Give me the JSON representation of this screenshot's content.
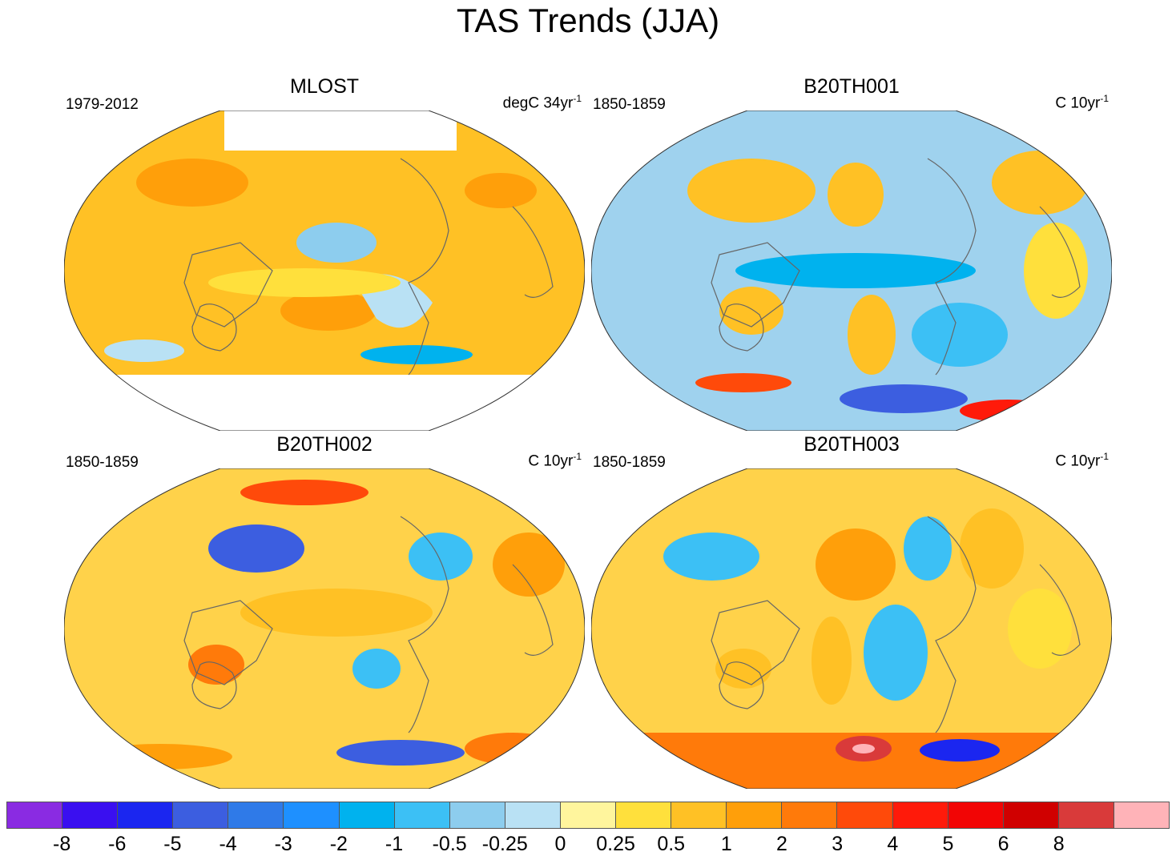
{
  "title": "TAS Trends (JJA)",
  "panels": [
    {
      "title": "MLOST",
      "period": "1979-2012",
      "units_base": "degC 34yr",
      "units_sup": "-1",
      "base_color": "#ffc125"
    },
    {
      "title": "B20TH001",
      "period": "1850-1859",
      "units_base": "C 10yr",
      "units_sup": "-1",
      "base_color": "#9fd2ee"
    },
    {
      "title": "B20TH002",
      "period": "1850-1859",
      "units_base": "C 10yr",
      "units_sup": "-1",
      "base_color": "#ffd24a"
    },
    {
      "title": "B20TH003",
      "period": "1850-1859",
      "units_base": "C 10yr",
      "units_sup": "-1",
      "base_color": "#ffd24a"
    }
  ],
  "colorbar": {
    "colors": [
      "#8a2be2",
      "#3a0ff0",
      "#1b26f0",
      "#3c5ee0",
      "#2f7ae8",
      "#1e90ff",
      "#00b2ee",
      "#3cc0f5",
      "#8dcdee",
      "#b9e1f4",
      "#fff59d",
      "#ffe03c",
      "#ffc125",
      "#ff9f0a",
      "#ff7a0a",
      "#ff4a0a",
      "#ff1a0a",
      "#f20505",
      "#d00000",
      "#d93a3a",
      "#ffb3b8"
    ],
    "labels": [
      "-8",
      "-6",
      "-5",
      "-4",
      "-3",
      "-2",
      "-1",
      "-0.5",
      "-0.25",
      "0",
      "0.25",
      "0.5",
      "1",
      "2",
      "3",
      "4",
      "5",
      "6",
      "8"
    ]
  },
  "chart_data": {
    "type": "heatmap",
    "title": "TAS Trends (JJA)",
    "projection": "Winkel tripel",
    "variable": "TAS (surface air temperature) trend",
    "season": "JJA",
    "contour_levels": [
      -8,
      -6,
      -5,
      -4,
      -3,
      -2,
      -1,
      -0.5,
      -0.25,
      0,
      0.25,
      0.5,
      1,
      2,
      3,
      4,
      5,
      6,
      8
    ],
    "panels": [
      {
        "name": "MLOST",
        "period": "1979-2012",
        "units": "degC 34yr-1"
      },
      {
        "name": "B20TH001",
        "period": "1850-1859",
        "units": "C 10yr-1"
      },
      {
        "name": "B20TH002",
        "period": "1850-1859",
        "units": "C 10yr-1"
      },
      {
        "name": "B20TH003",
        "period": "1850-1859",
        "units": "C 10yr-1"
      }
    ]
  }
}
